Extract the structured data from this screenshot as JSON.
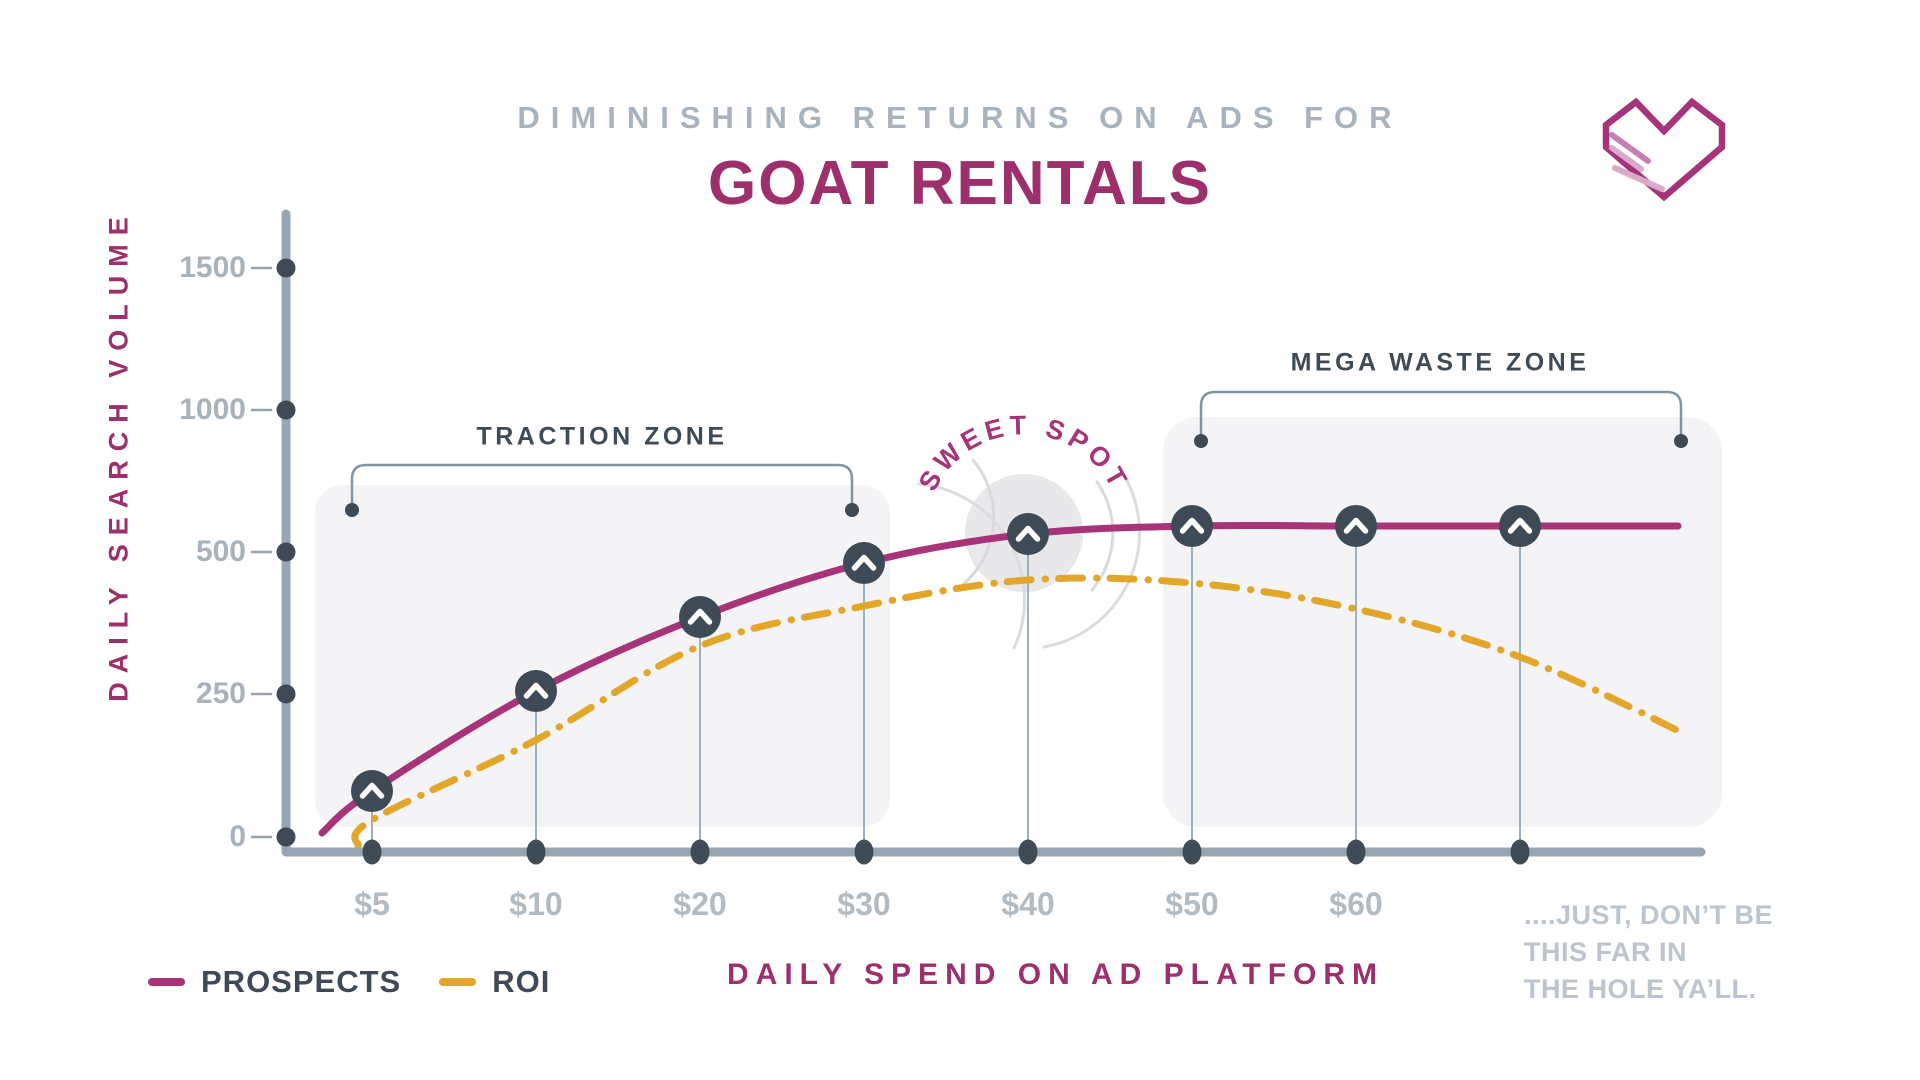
{
  "header": {
    "kicker": "DIMINISHING RETURNS ON ADS FOR",
    "title": "GOAT RENTALS"
  },
  "y_axis": {
    "title": "DAILY SEARCH VOLUME",
    "ticks": [
      "1500",
      "1000",
      "500",
      "250",
      "0"
    ]
  },
  "x_axis": {
    "title": "DAILY SPEND ON AD PLATFORM",
    "ticks": [
      "$5",
      "$10",
      "$20",
      "$30",
      "$40",
      "$50",
      "$60"
    ]
  },
  "annotations": {
    "traction_zone": "TRACTION ZONE",
    "sweet_spot": "SWEET SPOT",
    "mega_waste_zone": "MEGA WASTE ZONE",
    "footnote_lines": [
      "....JUST, DON’T BE",
      "THIS FAR IN",
      "THE HOLE YA’LL."
    ]
  },
  "legend": {
    "prospects": "PROSPECTS",
    "roi": "ROI"
  },
  "colors": {
    "magenta_line": "#a73379",
    "title_magenta": "#9d2f6c",
    "gold_line": "#e2a62a",
    "slate": "#3e4a56",
    "axis_gray": "#98a6b3",
    "zone_fill": "#f4f4f6",
    "tick_label_gray": "#a9b1ba",
    "note_gray": "#bdc4cd"
  },
  "chart_data": {
    "type": "line",
    "title": "DIMINISHING RETURNS ON ADS FOR GOAT RENTALS",
    "xlabel": "DAILY SPEND ON AD PLATFORM",
    "ylabel": "DAILY SEARCH VOLUME",
    "categories": [
      "$5",
      "$10",
      "$20",
      "$30",
      "$40",
      "$50",
      "$60",
      "(unlabeled 8th tick)"
    ],
    "y_ticks": [
      0,
      250,
      500,
      1000,
      1500
    ],
    "y_axis_note": "y tick spacing is uniform on screen - deliberately non-linear whimsical scale",
    "grid": false,
    "legend_position": "bottom-left",
    "series": [
      {
        "name": "PROSPECTS",
        "color": "#a73379",
        "style": "solid",
        "marker": "dark circle with white chevron-up at every category",
        "values": [
          80,
          255,
          385,
          480,
          565,
          590,
          590,
          590
        ],
        "extends_flat_to_right_edge": true
      },
      {
        "name": "ROI",
        "color": "#e2a62a",
        "style": "dash-dot",
        "marker": "none",
        "values": [
          30,
          170,
          335,
          405,
          450,
          445,
          400,
          315
        ],
        "tail_value_beyond_last_tick": 180
      }
    ],
    "annotations": [
      {
        "label": "TRACTION ZONE",
        "type": "shaded-zone with bracket",
        "x_range": [
          "$5",
          "$30"
        ]
      },
      {
        "label": "SWEET SPOT",
        "type": "concentric-circles with arced text",
        "x": "$40",
        "value": 565
      },
      {
        "label": "MEGA WASTE ZONE",
        "type": "shaded-zone with bracket",
        "x_range": [
          "$50",
          "beyond last tick"
        ]
      },
      {
        "label": "....JUST, DON’T BE THIS FAR IN THE HOLE YA’LL.",
        "type": "footnote replacing 8th x tick label"
      }
    ]
  }
}
